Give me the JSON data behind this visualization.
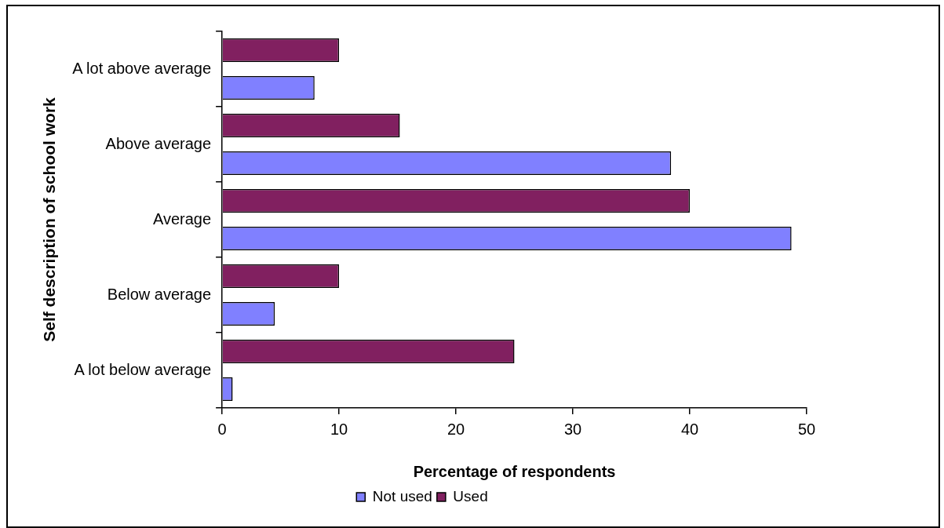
{
  "chart_data": {
    "type": "bar",
    "orientation": "horizontal",
    "xlabel": "Percentage of respondents",
    "ylabel": "Self description of school work",
    "categories": [
      "A lot above average",
      "Above average",
      "Average",
      "Below average",
      "A lot below average"
    ],
    "series": [
      {
        "name": "Not used",
        "color": "#8080ff",
        "values": [
          7.9,
          38.4,
          48.7,
          4.5,
          0.9
        ]
      },
      {
        "name": "Used",
        "color": "#812060",
        "values": [
          10,
          15.2,
          40,
          10,
          25
        ]
      }
    ],
    "xlim": [
      0,
      50
    ],
    "xticks": [
      0,
      10,
      20,
      30,
      40,
      50
    ],
    "grid": false,
    "legend": "bottom"
  }
}
